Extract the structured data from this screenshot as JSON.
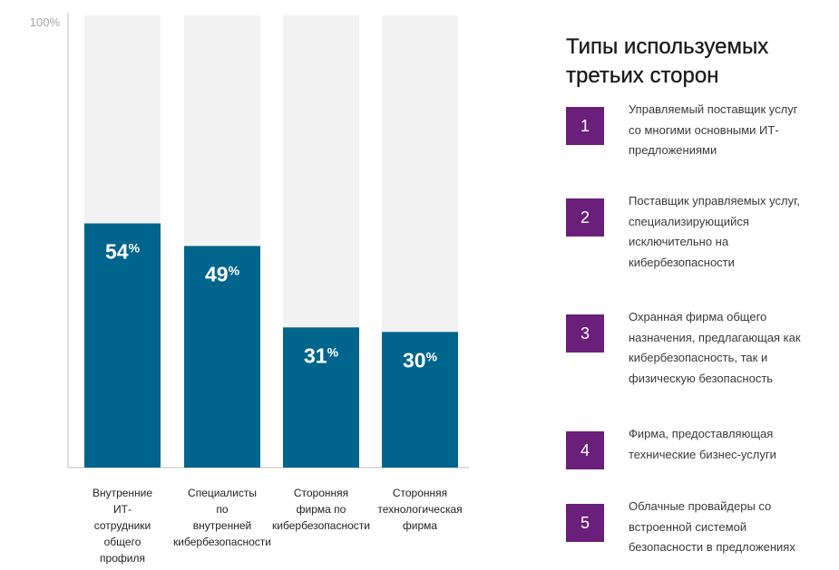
{
  "chart_data": {
    "type": "bar",
    "title": "Типы используемых третьих сторон",
    "xlabel": "",
    "ylabel": "",
    "ylim": [
      0,
      100
    ],
    "ytick_label": "100%",
    "categories": [
      "Внутренние ИТ-сотрудники общего профиля",
      "Специалисты по внутренней кибербезопасности",
      "Сторонняя фирма по кибербезопасности",
      "Сторонняя технологическая фирма"
    ],
    "category_lines": [
      [
        "Внутренние",
        "ИТ-",
        "сотрудники",
        "общего",
        "профиля"
      ],
      [
        "Специалисты",
        "по",
        "внутренней",
        "кибербезопасности"
      ],
      [
        "Сторонняя",
        "фирма по",
        "кибербезопасности"
      ],
      [
        "Сторонняя",
        "технологическая",
        "фирма"
      ]
    ],
    "values": [
      54,
      49,
      31,
      30
    ],
    "value_suffix": "%",
    "colors": {
      "bar": "#00658c",
      "background_bar": "#f2f2f2",
      "axis": "#bfbfbf",
      "label": "#ffffff"
    }
  },
  "legend": {
    "title_lines": [
      "Типы используемых",
      "третьих сторон"
    ],
    "badge_color": "#6a1f7a",
    "items": [
      {
        "num": "1",
        "lines": [
          "Управляемый поставщик услуг",
          "со многими основными ИТ-",
          "предложениями"
        ]
      },
      {
        "num": "2",
        "lines": [
          "Поставщик управляемых услуг,",
          "специализирующийся",
          "исключительно на",
          "кибербезопасности"
        ]
      },
      {
        "num": "3",
        "lines": [
          "Охранная фирма общего",
          "назначения, предлагающая как",
          "кибербезопасность, так и",
          "физическую безопасность"
        ]
      },
      {
        "num": "4",
        "lines": [
          "Фирма, предоставляющая",
          "технические бизнес-услуги"
        ]
      },
      {
        "num": "5",
        "lines": [
          "Облачные провайдеры со",
          "встроенной системой",
          "безопасности в предложениях"
        ]
      }
    ]
  }
}
